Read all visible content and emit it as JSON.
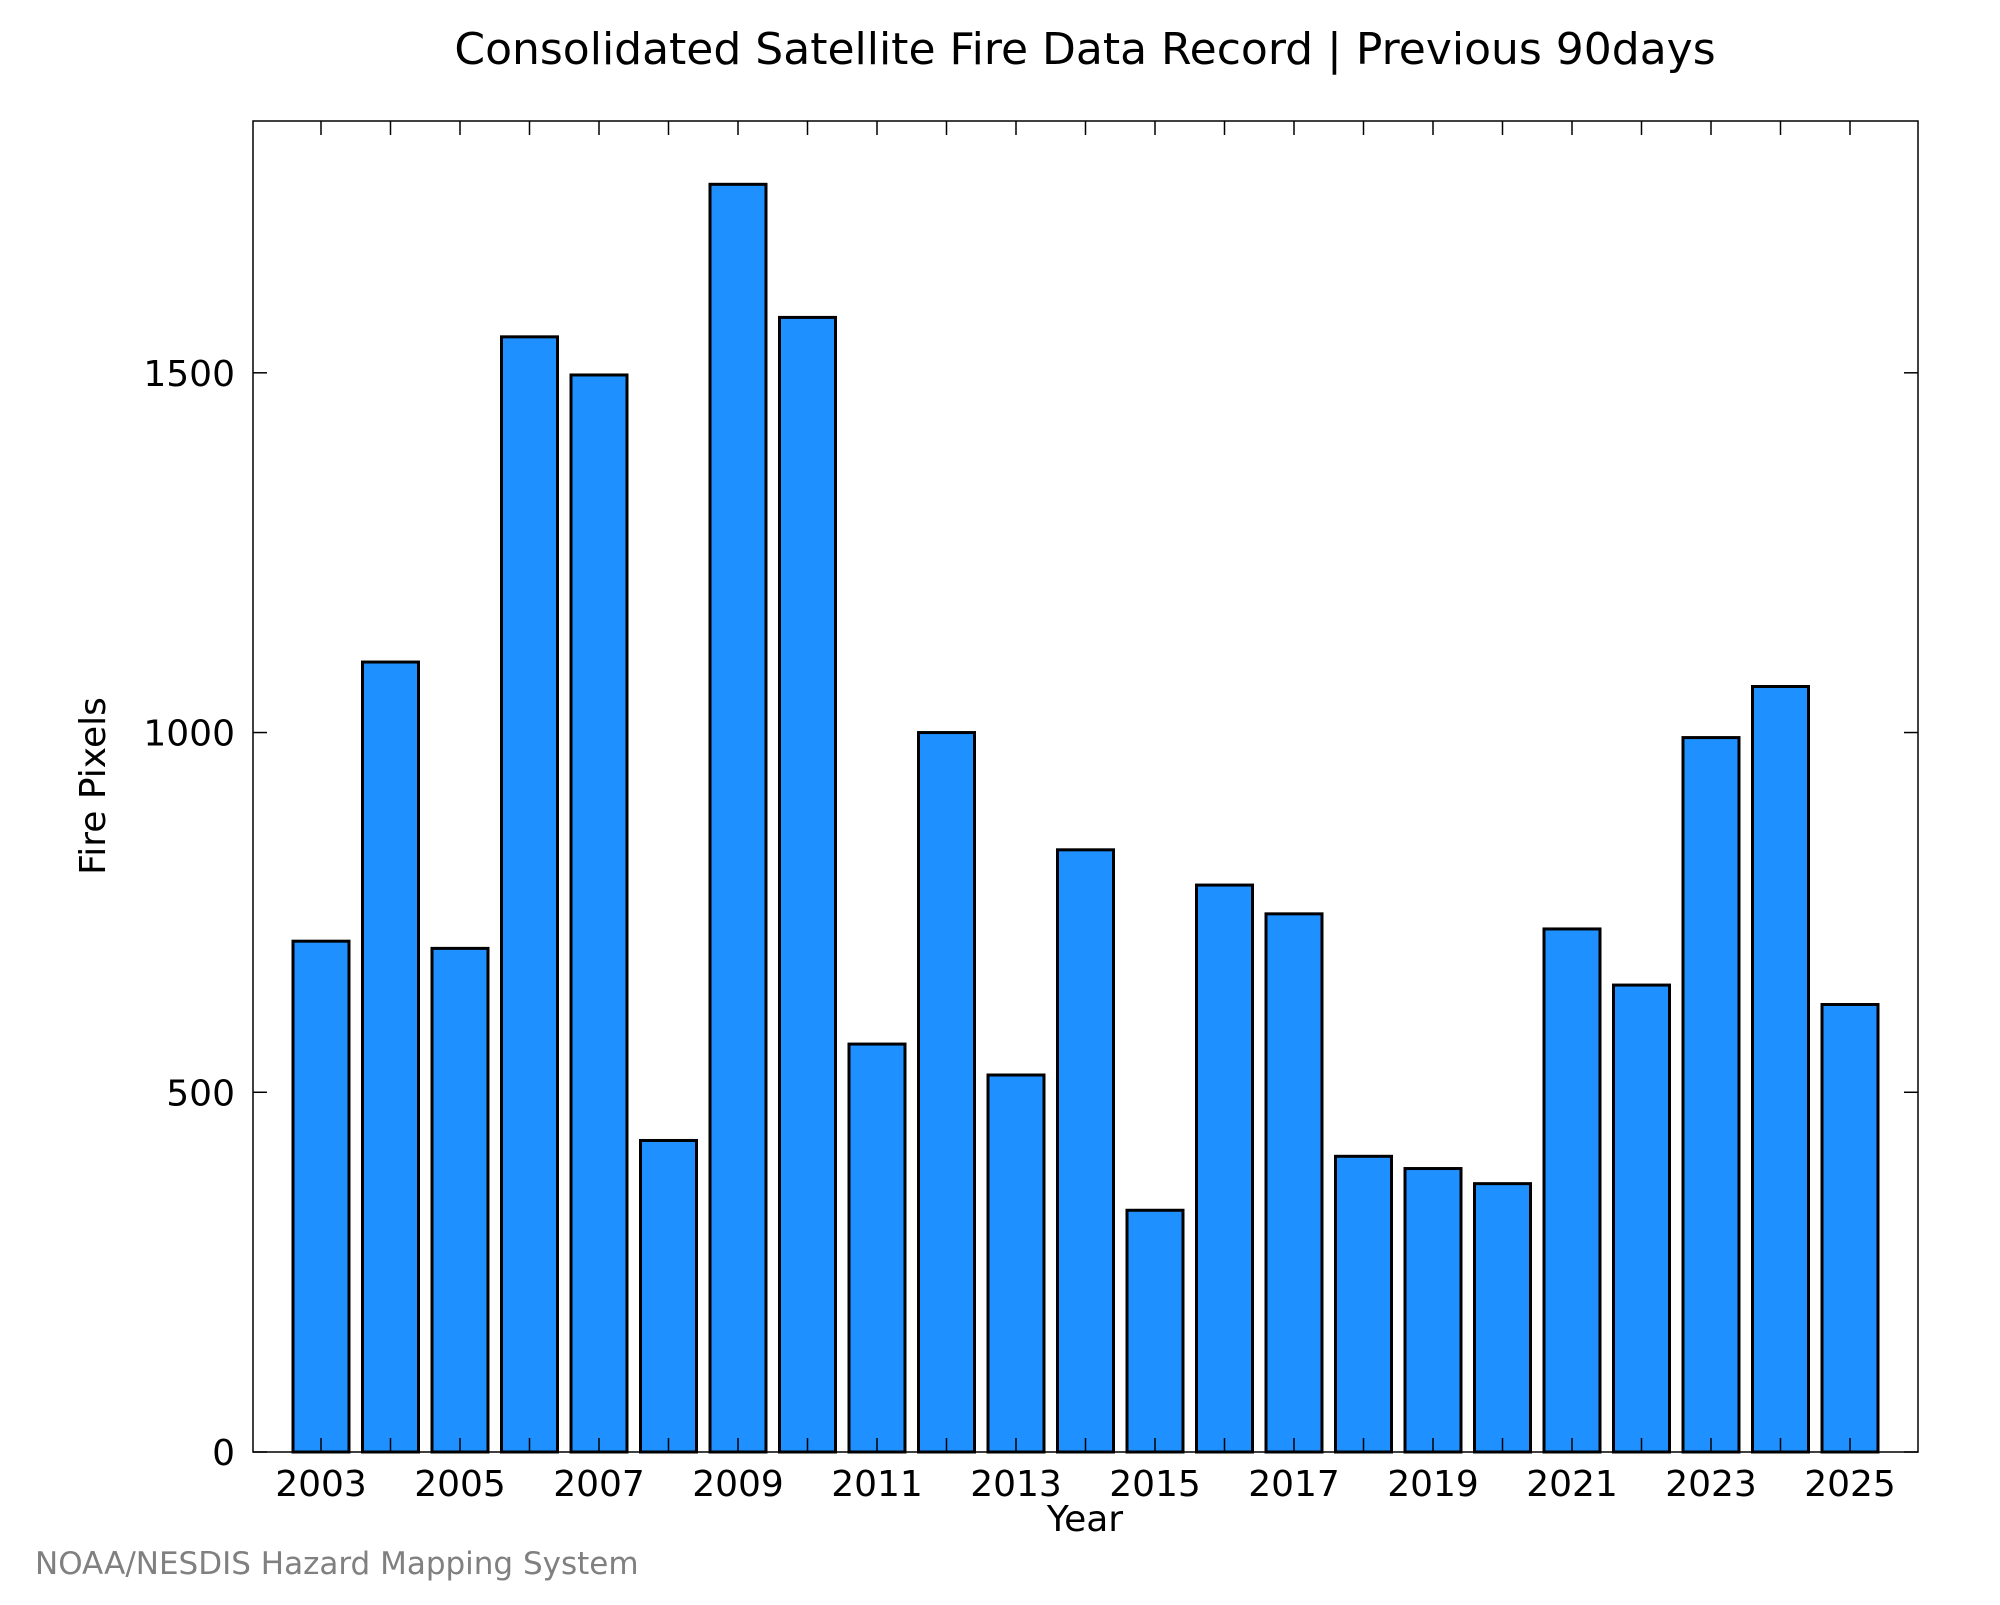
{
  "chart_data": {
    "type": "bar",
    "title": "Consolidated Satellite Fire Data Record | Previous 90days",
    "xlabel": "Year",
    "ylabel": "Fire Pixels",
    "categories": [
      "2003",
      "2004",
      "2005",
      "2006",
      "2007",
      "2008",
      "2009",
      "2010",
      "2011",
      "2012",
      "2013",
      "2014",
      "2015",
      "2016",
      "2017",
      "2018",
      "2019",
      "2020",
      "2021",
      "2022",
      "2023",
      "2024",
      "2025"
    ],
    "x_tick_labels": [
      "2003",
      "2005",
      "2007",
      "2009",
      "2011",
      "2013",
      "2015",
      "2017",
      "2019",
      "2021",
      "2023",
      "2025"
    ],
    "values": [
      710,
      1098,
      700,
      1550,
      1497,
      433,
      1762,
      1577,
      567,
      1000,
      524,
      837,
      336,
      788,
      748,
      411,
      394,
      373,
      727,
      649,
      993,
      1064,
      622
    ],
    "y_ticks": [
      0,
      500,
      1000,
      1500
    ],
    "ylim": [
      0,
      1850
    ],
    "grid": false,
    "legend": "none",
    "bar_color": "#1e90ff",
    "bar_edge_color": "#000000"
  },
  "credit": "NOAA/NESDIS Hazard Mapping System"
}
